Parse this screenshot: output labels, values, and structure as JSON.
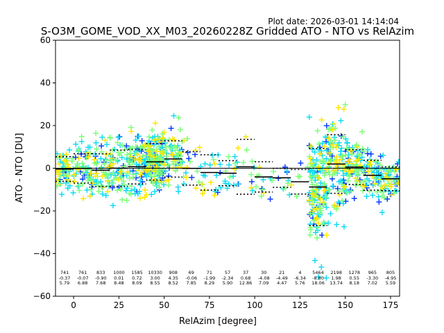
{
  "plot_date": "Plot date: 2026-03-01 14:14:04",
  "chart_data": {
    "type": "scatter",
    "title": "S-O3M_GOME_VOD_XX_M03_20260228Z Gridded ATO - NTO vs RelAzim",
    "xlabel": "RelAzim [degree]",
    "ylabel": "ATO - NTO [DU]",
    "xlim": [
      -10,
      180
    ],
    "ylim": [
      -60,
      60
    ],
    "xticks": [
      0,
      25,
      50,
      75,
      100,
      125,
      150,
      175
    ],
    "yticks": [
      -60,
      -40,
      -20,
      0,
      20,
      40,
      60
    ],
    "grid": false,
    "reference_line_y": 0,
    "marker": "+",
    "density_colors": [
      "#0a3cff",
      "#13dcf2",
      "#7cff79",
      "#ffe600"
    ],
    "bins": [
      {
        "xmin": -10,
        "xmax": 0,
        "n": "741",
        "mean": "-0.37",
        "std": "5.79"
      },
      {
        "xmin": 0,
        "xmax": 10,
        "n": "761",
        "mean": "-0.07",
        "std": "6.88"
      },
      {
        "xmin": 10,
        "xmax": 20,
        "n": "833",
        "mean": "-0.90",
        "std": "7.68"
      },
      {
        "xmin": 20,
        "xmax": 30,
        "n": "1000",
        "mean": "0.01",
        "std": "8.48"
      },
      {
        "xmin": 30,
        "xmax": 40,
        "n": "1585",
        "mean": "0.72",
        "std": "8.09"
      },
      {
        "xmin": 40,
        "xmax": 50,
        "n": "10330",
        "mean": "3.00",
        "std": "8.55"
      },
      {
        "xmin": 50,
        "xmax": 60,
        "n": "908",
        "mean": "4.35",
        "std": "8.52"
      },
      {
        "xmin": 60,
        "xmax": 70,
        "n": "69",
        "mean": "-0.06",
        "std": "7.85"
      },
      {
        "xmin": 70,
        "xmax": 80,
        "n": "71",
        "mean": "-1.99",
        "std": "8.29"
      },
      {
        "xmin": 80,
        "xmax": 90,
        "n": "57",
        "mean": "-2.34",
        "std": "5.90"
      },
      {
        "xmin": 90,
        "xmax": 100,
        "n": "37",
        "mean": "0.68",
        "std": "12.86"
      },
      {
        "xmin": 100,
        "xmax": 110,
        "n": "30",
        "mean": "-4.08",
        "std": "7.09"
      },
      {
        "xmin": 110,
        "xmax": 120,
        "n": "21",
        "mean": "-4.49",
        "std": "4.47"
      },
      {
        "xmin": 120,
        "xmax": 130,
        "n": "4",
        "mean": "-6.34",
        "std": "5.76"
      },
      {
        "xmin": 130,
        "xmax": 140,
        "n": "5464",
        "mean": "-8.80",
        "std": "18.06"
      },
      {
        "xmin": 140,
        "xmax": 150,
        "n": "2198",
        "mean": "1.98",
        "std": "13.74"
      },
      {
        "xmin": 150,
        "xmax": 160,
        "n": "1278",
        "mean": "0.55",
        "std": "8.18"
      },
      {
        "xmin": 160,
        "xmax": 170,
        "n": "965",
        "mean": "-3.30",
        "std": "7.02"
      },
      {
        "xmin": 170,
        "xmax": 180,
        "n": "805",
        "mean": "-4.95",
        "std": "5.59"
      }
    ]
  }
}
